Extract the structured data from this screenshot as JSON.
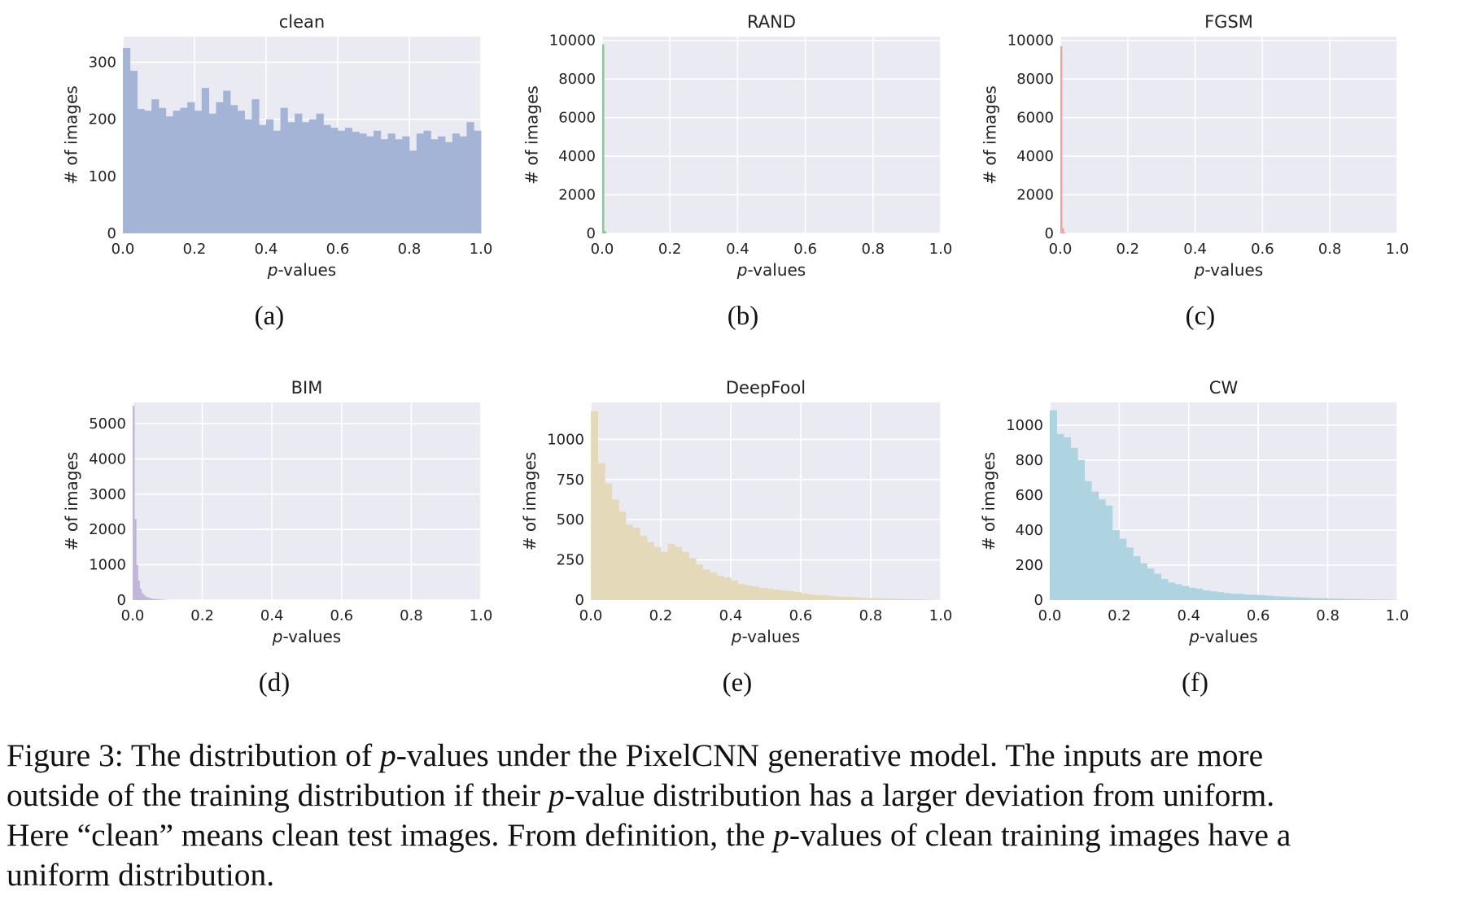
{
  "chart_data": [
    {
      "type": "bar",
      "title": "clean",
      "panel_label": "(a)",
      "xlabel_italic": "p",
      "xlabel_rest": "-values",
      "ylabel": "# of images",
      "xlim": [
        0,
        1
      ],
      "ylim": [
        0,
        345
      ],
      "xticks": [
        "0.0",
        "0.2",
        "0.4",
        "0.6",
        "0.8",
        "1.0"
      ],
      "ytick_values": [
        0,
        100,
        200,
        300
      ],
      "ytick_labels": [
        "0",
        "100",
        "200",
        "300"
      ],
      "bin_width": 0.02,
      "color": "#a4b4d6",
      "values": [
        325,
        285,
        218,
        215,
        235,
        220,
        205,
        215,
        220,
        230,
        215,
        255,
        210,
        230,
        250,
        225,
        215,
        200,
        235,
        190,
        200,
        180,
        220,
        195,
        210,
        195,
        200,
        210,
        190,
        185,
        180,
        185,
        178,
        175,
        170,
        180,
        165,
        175,
        165,
        170,
        145,
        175,
        180,
        165,
        170,
        160,
        175,
        170,
        195,
        180
      ]
    },
    {
      "type": "bar",
      "title": "RAND",
      "panel_label": "(b)",
      "xlabel_italic": "p",
      "xlabel_rest": "-values",
      "ylabel": "# of images",
      "xlim": [
        0,
        1
      ],
      "ylim": [
        0,
        10200
      ],
      "xticks": [
        "0.0",
        "0.2",
        "0.4",
        "0.6",
        "0.8",
        "1.0"
      ],
      "ytick_values": [
        0,
        2000,
        4000,
        6000,
        8000,
        10000
      ],
      "ytick_labels": [
        "0",
        "2000",
        "4000",
        "6000",
        "8000",
        "10000"
      ],
      "bin_width": 0.005,
      "color": "#8fc49b",
      "values": [
        9800,
        120,
        20
      ]
    },
    {
      "type": "bar",
      "title": "FGSM",
      "panel_label": "(c)",
      "xlabel_italic": "p",
      "xlabel_rest": "-values",
      "ylabel": "# of images",
      "xlim": [
        0,
        1
      ],
      "ylim": [
        0,
        10200
      ],
      "xticks": [
        "0.0",
        "0.2",
        "0.4",
        "0.6",
        "0.8",
        "1.0"
      ],
      "ytick_values": [
        0,
        2000,
        4000,
        6000,
        8000,
        10000
      ],
      "ytick_labels": [
        "0",
        "2000",
        "4000",
        "6000",
        "8000",
        "10000"
      ],
      "bin_width": 0.005,
      "color": "#e8a5a5",
      "values": [
        9700,
        260,
        40
      ]
    },
    {
      "type": "bar",
      "title": "BIM",
      "panel_label": "(d)",
      "xlabel_italic": "p",
      "xlabel_rest": "-values",
      "ylabel": "# of images",
      "xlim": [
        0,
        1
      ],
      "ylim": [
        0,
        5600
      ],
      "xticks": [
        "0.0",
        "0.2",
        "0.4",
        "0.6",
        "0.8",
        "1.0"
      ],
      "ytick_values": [
        0,
        1000,
        2000,
        3000,
        4000,
        5000
      ],
      "ytick_labels": [
        "0",
        "1000",
        "2000",
        "3000",
        "4000",
        "5000"
      ],
      "bin_width": 0.005,
      "color": "#c3b6dc",
      "values": [
        5500,
        2300,
        1000,
        550,
        320,
        200,
        140,
        100,
        80,
        60,
        45,
        35,
        30,
        25,
        20,
        15,
        12,
        10,
        8,
        6
      ]
    },
    {
      "type": "bar",
      "title": "DeepFool",
      "panel_label": "(e)",
      "xlabel_italic": "p",
      "xlabel_rest": "-values",
      "ylabel": "# of images",
      "xlim": [
        0,
        1
      ],
      "ylim": [
        0,
        1230
      ],
      "xticks": [
        "0.0",
        "0.2",
        "0.4",
        "0.6",
        "0.8",
        "1.0"
      ],
      "ytick_values": [
        0,
        250,
        500,
        750,
        1000
      ],
      "ytick_labels": [
        "0",
        "250",
        "500",
        "750",
        "1000"
      ],
      "bin_width": 0.02,
      "color": "#e4d9b8",
      "values": [
        1175,
        850,
        725,
        625,
        550,
        470,
        450,
        400,
        360,
        330,
        300,
        350,
        330,
        300,
        260,
        220,
        190,
        170,
        150,
        140,
        120,
        100,
        90,
        85,
        75,
        70,
        65,
        60,
        55,
        50,
        40,
        35,
        30,
        30,
        25,
        20,
        20,
        18,
        15,
        12,
        10,
        10,
        8,
        8,
        6,
        5,
        5,
        4,
        3,
        2
      ]
    },
    {
      "type": "bar",
      "title": "CW",
      "panel_label": "(f)",
      "xlabel_italic": "p",
      "xlabel_rest": "-values",
      "ylabel": "# of images",
      "xlim": [
        0,
        1
      ],
      "ylim": [
        0,
        1130
      ],
      "xticks": [
        "0.0",
        "0.2",
        "0.4",
        "0.6",
        "0.8",
        "1.0"
      ],
      "ytick_values": [
        0,
        200,
        400,
        600,
        800,
        1000
      ],
      "ytick_labels": [
        "0",
        "200",
        "400",
        "600",
        "800",
        "1000"
      ],
      "bin_width": 0.02,
      "color": "#aed4e2",
      "values": [
        1085,
        950,
        930,
        870,
        800,
        680,
        620,
        575,
        540,
        400,
        350,
        300,
        250,
        210,
        180,
        150,
        120,
        100,
        90,
        80,
        70,
        65,
        55,
        50,
        45,
        40,
        35,
        35,
        30,
        30,
        28,
        25,
        22,
        20,
        18,
        16,
        14,
        12,
        10,
        10,
        8,
        8,
        6,
        6,
        5,
        4,
        4,
        3,
        3,
        2
      ]
    }
  ],
  "caption": {
    "line1_a": "Figure 3: The distribution of ",
    "line1_p": "p",
    "line1_b": "-values under the PixelCNN generative model. The inputs are more",
    "line2_a": "outside of the training distribution if their ",
    "line2_p": "p",
    "line2_b": "-value distribution has a larger deviation from uniform.",
    "line3_a": "Here “clean” means clean test images. From definition, the ",
    "line3_p": "p",
    "line3_b": "-values of clean training images have a",
    "line4": "uniform distribution."
  }
}
